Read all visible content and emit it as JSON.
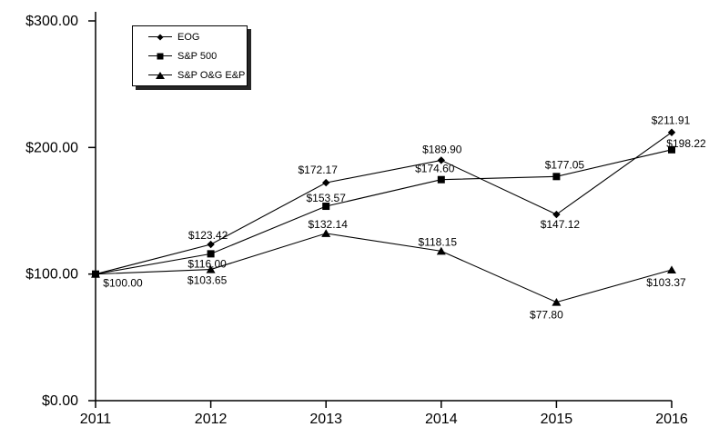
{
  "page": {
    "background_color": "#ffffff",
    "line_color": "#000000",
    "text_color": "#000000"
  },
  "chart_data": {
    "type": "line",
    "title": "",
    "xlabel": "",
    "ylabel": "",
    "grid": false,
    "legend_position": "top-left",
    "x_labels": [
      "2011",
      "2012",
      "2013",
      "2014",
      "2015",
      "2016"
    ],
    "ylim": [
      0,
      300
    ],
    "y_ticks": [
      {
        "value": 0,
        "label": "$0.00"
      },
      {
        "value": 100,
        "label": "$100.00"
      },
      {
        "value": 200,
        "label": "$200.00"
      },
      {
        "value": 300,
        "label": "$300.00"
      }
    ],
    "series": [
      {
        "name": "EOG",
        "marker": "diamond",
        "color": "#000000",
        "values": [
          100.0,
          123.42,
          172.17,
          189.9,
          147.12,
          211.91
        ],
        "labels": [
          "$100.00",
          "$123.42",
          "$172.17",
          "$189.90",
          "$147.12",
          "$211.91"
        ],
        "label_offsets": [
          [
            30,
            14
          ],
          [
            -3,
            -6
          ],
          [
            -9,
            -10
          ],
          [
            1,
            -8
          ],
          [
            4,
            15
          ],
          [
            -1,
            -9
          ]
        ]
      },
      {
        "name": "S&P 500",
        "marker": "square",
        "color": "#000000",
        "values": [
          100.0,
          116.0,
          153.57,
          174.6,
          177.05,
          198.22
        ],
        "labels": [
          null,
          "$116.00",
          "$153.57",
          "$174.60",
          "$177.05",
          "$198.22"
        ],
        "label_offsets": [
          null,
          [
            -4,
            15
          ],
          [
            0,
            -5
          ],
          [
            -7,
            -8
          ],
          [
            9,
            -9
          ],
          [
            16,
            -3
          ]
        ]
      },
      {
        "name": "S&P O&G E&P",
        "marker": "triangle",
        "color": "#000000",
        "values": [
          100.0,
          103.65,
          132.14,
          118.15,
          77.8,
          103.37
        ],
        "labels": [
          null,
          "$103.65",
          "$132.14",
          "$118.15",
          "$77.80",
          "$103.37"
        ],
        "label_offsets": [
          null,
          [
            -4,
            16
          ],
          [
            2,
            -6
          ],
          [
            -4,
            -6
          ],
          [
            -11,
            18
          ],
          [
            -6,
            18
          ]
        ]
      }
    ]
  }
}
